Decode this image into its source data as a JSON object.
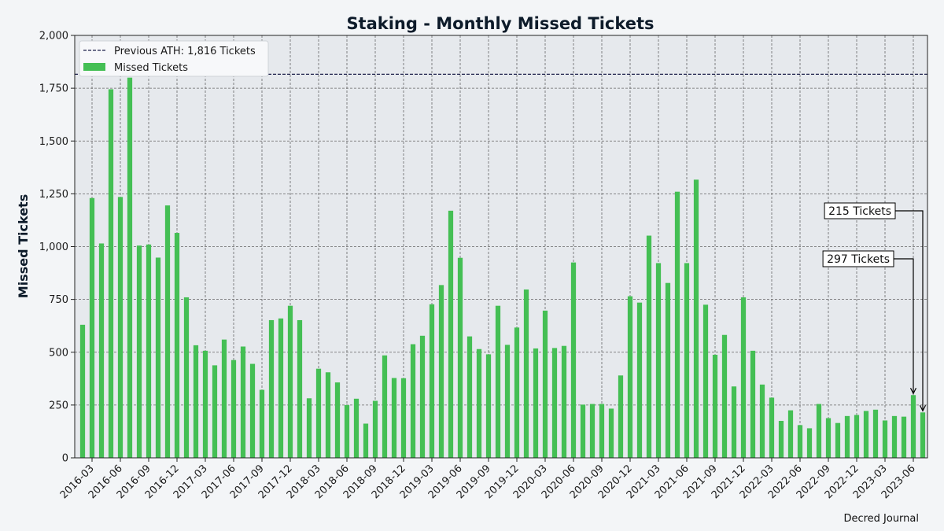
{
  "chart_data": {
    "type": "bar",
    "title": "Staking - Monthly Missed Tickets",
    "ylabel": "Missed Tickets",
    "xlabel": "",
    "ylim": [
      0,
      2000
    ],
    "yticks": [
      0,
      250,
      500,
      750,
      1000,
      1250,
      1500,
      1750,
      2000
    ],
    "ytick_labels": [
      "0",
      "250",
      "500",
      "750",
      "1,000",
      "1,250",
      "1,500",
      "1,750",
      "2,000"
    ],
    "xtick_labels": [
      "2016-03",
      "2016-06",
      "2016-09",
      "2016-12",
      "2017-03",
      "2017-06",
      "2017-09",
      "2017-12",
      "2018-03",
      "2018-06",
      "2018-09",
      "2018-12",
      "2019-03",
      "2019-06",
      "2019-09",
      "2019-12",
      "2020-03",
      "2020-06",
      "2020-09",
      "2020-12",
      "2021-03",
      "2021-06",
      "2021-09",
      "2021-12",
      "2022-03",
      "2022-06",
      "2022-09",
      "2022-12",
      "2023-03",
      "2023-06"
    ],
    "grid": true,
    "legend_position": "top-left",
    "series": [
      {
        "name": "Missed Tickets",
        "color": "#44bf54",
        "categories": [
          "2016-02",
          "2016-03",
          "2016-04",
          "2016-05",
          "2016-06",
          "2016-07",
          "2016-08",
          "2016-09",
          "2016-10",
          "2016-11",
          "2016-12",
          "2017-01",
          "2017-02",
          "2017-03",
          "2017-04",
          "2017-05",
          "2017-06",
          "2017-07",
          "2017-08",
          "2017-09",
          "2017-10",
          "2017-11",
          "2017-12",
          "2018-01",
          "2018-02",
          "2018-03",
          "2018-04",
          "2018-05",
          "2018-06",
          "2018-07",
          "2018-08",
          "2018-09",
          "2018-10",
          "2018-11",
          "2018-12",
          "2019-01",
          "2019-02",
          "2019-03",
          "2019-04",
          "2019-05",
          "2019-06",
          "2019-07",
          "2019-08",
          "2019-09",
          "2019-10",
          "2019-11",
          "2019-12",
          "2020-01",
          "2020-02",
          "2020-03",
          "2020-04",
          "2020-05",
          "2020-06",
          "2020-07",
          "2020-08",
          "2020-09",
          "2020-10",
          "2020-11",
          "2020-12",
          "2021-01",
          "2021-02",
          "2021-03",
          "2021-04",
          "2021-05",
          "2021-06",
          "2021-07",
          "2021-08",
          "2021-09",
          "2021-10",
          "2021-11",
          "2021-12",
          "2022-01",
          "2022-02",
          "2022-03",
          "2022-04",
          "2022-05",
          "2022-06",
          "2022-07",
          "2022-08",
          "2022-09",
          "2022-10",
          "2022-11",
          "2022-12",
          "2023-01",
          "2023-02",
          "2023-03",
          "2023-04",
          "2023-05",
          "2023-06",
          "2023-07"
        ],
        "values": [
          630,
          1230,
          1015,
          1745,
          1235,
          1800,
          1005,
          1010,
          948,
          1195,
          1065,
          760,
          533,
          507,
          438,
          560,
          463,
          527,
          445,
          322,
          652,
          660,
          720,
          652,
          282,
          422,
          405,
          357,
          250,
          280,
          162,
          270,
          485,
          378,
          377,
          538,
          578,
          727,
          818,
          1170,
          947,
          575,
          515,
          490,
          720,
          535,
          617,
          797,
          518,
          697,
          520,
          530,
          925,
          252,
          255,
          255,
          233,
          390,
          765,
          735,
          1052,
          922,
          828,
          1260,
          922,
          1317,
          725,
          488,
          582,
          338,
          760,
          507,
          347,
          285,
          175,
          225,
          155,
          140,
          255,
          188,
          165,
          198,
          203,
          222,
          228,
          177,
          198,
          195,
          297,
          215
        ]
      }
    ],
    "reference_line": {
      "label": "Previous ATH: 1,816 Tickets",
      "value": 1816,
      "color": "#1c1f4a"
    },
    "annotations": [
      {
        "text": "297 Tickets",
        "category": "2023-06",
        "value": 297
      },
      {
        "text": "215 Tickets",
        "category": "2023-07",
        "value": 215
      }
    ],
    "credit": "Decred Journal"
  }
}
